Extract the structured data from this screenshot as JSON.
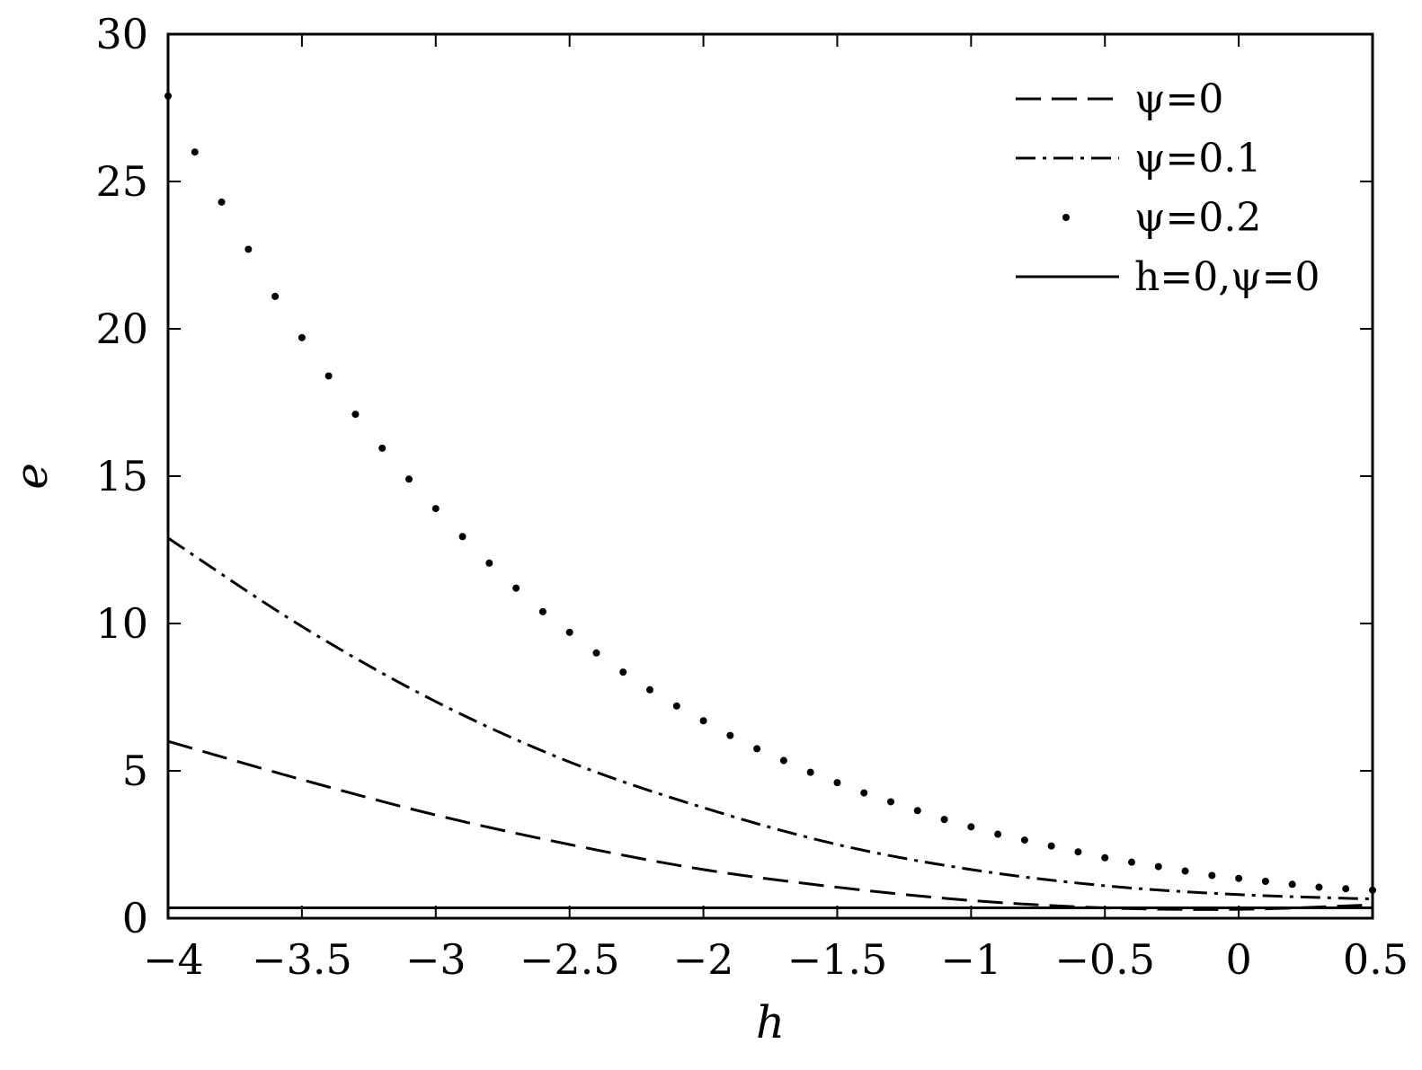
{
  "chart_data": {
    "type": "line",
    "xlabel": "h",
    "ylabel": "e",
    "xlim": [
      -4,
      0.5
    ],
    "ylim": [
      0,
      30
    ],
    "xticks": [
      -4,
      -3.5,
      -3,
      -2.5,
      -2,
      -1.5,
      -1,
      -0.5,
      0,
      0.5
    ],
    "yticks": [
      0,
      5,
      10,
      15,
      20,
      25,
      30
    ],
    "xtick_labels": [
      "−4",
      "−3.5",
      "−3",
      "−2.5",
      "−2",
      "−1.5",
      "−1",
      "−0.5",
      "0",
      "0.5"
    ],
    "ytick_labels": [
      "0",
      "5",
      "10",
      "15",
      "20",
      "25",
      "30"
    ],
    "grid": false,
    "legend_position": "top-right",
    "series": [
      {
        "name": "ψ=0",
        "style": "dashed",
        "x": [
          -4,
          -3.5,
          -3,
          -2.5,
          -2,
          -1.5,
          -1,
          -0.5,
          0,
          0.5
        ],
        "y": [
          6.0,
          4.7,
          3.5,
          2.5,
          1.65,
          1.05,
          0.6,
          0.35,
          0.3,
          0.45
        ]
      },
      {
        "name": "ψ=0.1",
        "style": "dash-dot",
        "x": [
          -4,
          -3.5,
          -3,
          -2.5,
          -2,
          -1.5,
          -1,
          -0.5,
          0,
          0.5
        ],
        "y": [
          12.9,
          9.9,
          7.35,
          5.3,
          3.75,
          2.5,
          1.65,
          1.1,
          0.8,
          0.65
        ]
      },
      {
        "name": "ψ=0.2",
        "style": "dotted",
        "x": [
          -4,
          -3.9,
          -3.8,
          -3.7,
          -3.6,
          -3.5,
          -3.4,
          -3.3,
          -3.2,
          -3.1,
          -3.0,
          -2.9,
          -2.8,
          -2.7,
          -2.6,
          -2.5,
          -2.4,
          -2.3,
          -2.2,
          -2.1,
          -2.0,
          -1.9,
          -1.8,
          -1.7,
          -1.6,
          -1.5,
          -1.4,
          -1.3,
          -1.2,
          -1.1,
          -1.0,
          -0.9,
          -0.8,
          -0.7,
          -0.6,
          -0.5,
          -0.4,
          -0.3,
          -0.2,
          -0.1,
          0.0,
          0.1,
          0.2,
          0.3,
          0.4,
          0.5
        ],
        "y": [
          27.9,
          26.0,
          24.3,
          22.7,
          21.1,
          19.7,
          18.4,
          17.1,
          15.95,
          14.9,
          13.9,
          12.95,
          12.05,
          11.2,
          10.4,
          9.7,
          9.0,
          8.35,
          7.75,
          7.2,
          6.7,
          6.2,
          5.75,
          5.35,
          4.95,
          4.6,
          4.25,
          3.95,
          3.65,
          3.35,
          3.1,
          2.85,
          2.65,
          2.45,
          2.25,
          2.05,
          1.9,
          1.75,
          1.6,
          1.45,
          1.35,
          1.25,
          1.15,
          1.05,
          1.0,
          0.95
        ]
      },
      {
        "name": "h=0,ψ=0",
        "style": "solid",
        "x": [
          -4,
          0.5
        ],
        "y": [
          0.35,
          0.35
        ]
      }
    ]
  }
}
